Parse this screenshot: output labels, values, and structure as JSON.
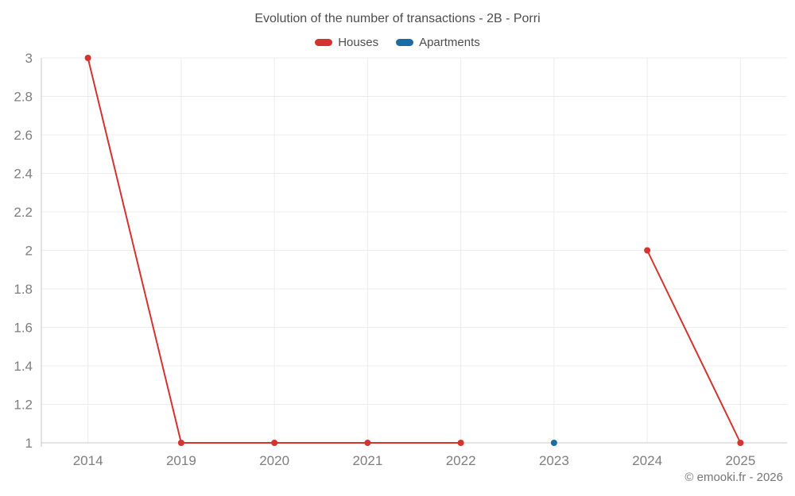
{
  "footer": {
    "copyright": "© emooki.fr - 2026"
  },
  "chart_data": {
    "type": "line",
    "title": "Evolution of the number of transactions - 2B - Porri",
    "categories": [
      "2014",
      "2019",
      "2020",
      "2021",
      "2022",
      "2023",
      "2024",
      "2025"
    ],
    "series": [
      {
        "name": "Houses",
        "color": "#d4332f",
        "values": [
          3,
          1,
          1,
          1,
          1,
          null,
          2,
          1
        ]
      },
      {
        "name": "Apartments",
        "color": "#1b6ca3",
        "values": [
          null,
          null,
          null,
          null,
          null,
          1,
          null,
          null
        ]
      }
    ],
    "ylim": [
      1,
      3
    ],
    "y_ticks": [
      1,
      1.2,
      1.4,
      1.6,
      1.8,
      2,
      2.2,
      2.4,
      2.6,
      2.8,
      3
    ],
    "xlabel": "",
    "ylabel": "",
    "grid": true,
    "legend_position": "top",
    "marker_radius": 4,
    "line_width": 2,
    "styles": {
      "grid_color": "#ececec",
      "axis_color": "#c9c9c9",
      "tick_label_color": "#7e7e7e",
      "title_color": "#4d4d4d",
      "legend_text_color": "#4d4d4d",
      "copyright_color": "#757575",
      "background": "#ffffff"
    }
  }
}
